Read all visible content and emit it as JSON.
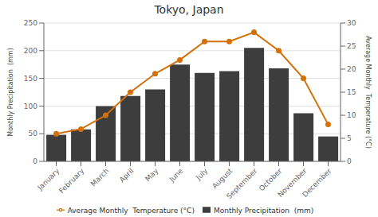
{
  "chart_data": {
    "type": "bar",
    "title": "Tokyo, Japan",
    "categories": [
      "January",
      "February",
      "March",
      "April",
      "May",
      "June",
      "July",
      "August",
      "September",
      "October",
      "November",
      "December"
    ],
    "series": [
      {
        "name": "Monthly Precipitation  (mm)",
        "type": "bar",
        "color": "#3d3d3d",
        "values": [
          48,
          58,
          100,
          118,
          130,
          175,
          160,
          163,
          205,
          168,
          87,
          45
        ]
      },
      {
        "name": "Average Monthly  Temperature (°C)",
        "type": "line",
        "axis": "y2",
        "color": "#d4700a",
        "marker": "circle",
        "values": [
          6,
          7,
          10,
          15,
          19,
          22,
          26,
          26,
          28,
          24,
          18,
          8
        ]
      }
    ],
    "ylabel": "Monthly Precipitation  (mm)",
    "y2label": "Average Monthly  Temperature (°C)",
    "ylim": [
      0,
      250
    ],
    "yticks": [
      0,
      50,
      100,
      150,
      200,
      250
    ],
    "y2lim": [
      0,
      30
    ],
    "y2ticks": [
      0,
      5,
      10,
      15,
      20,
      25,
      30
    ],
    "grid": true,
    "legend": "bottom"
  }
}
